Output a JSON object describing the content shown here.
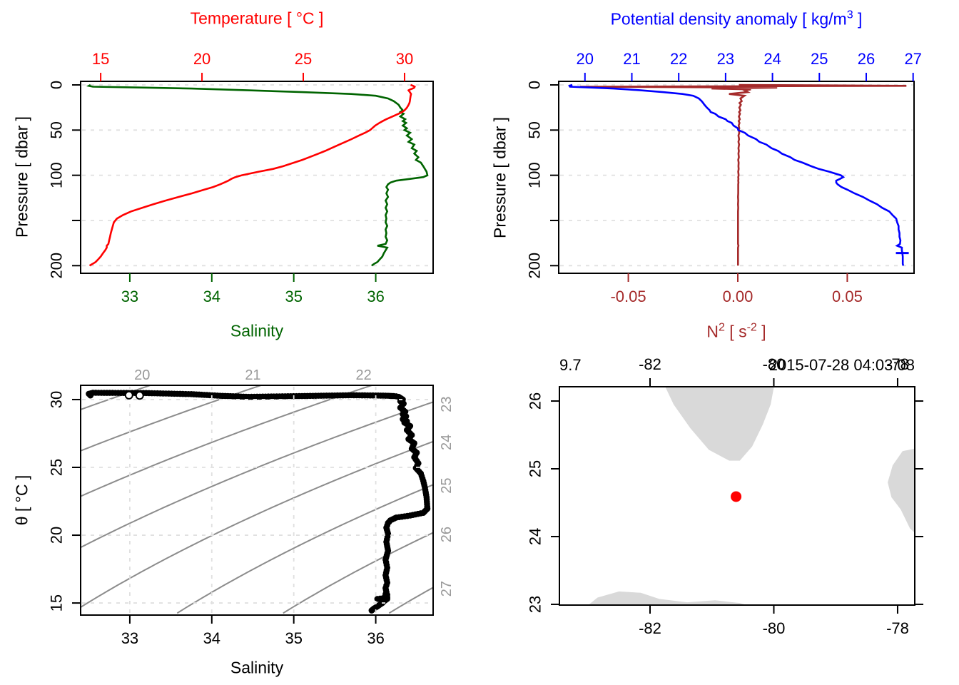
{
  "labels": {
    "temperature_axis": "Temperature [ °C ]",
    "salinity_axis": "Salinity",
    "pressure_axis": "Pressure [ dbar ]",
    "density_axis_pre": "Potential density anomaly [ kg/m",
    "density_axis_sup": "3",
    "density_axis_post": " ]",
    "n2_pre": "N",
    "n2_sup": "2",
    "n2_mid": " [ s",
    "n2_sup2": "-2",
    "n2_post": " ]",
    "theta_axis": "θ [ °C ]",
    "ts_xlabel": "Salinity",
    "map_distance": "9.7",
    "map_datetime": "2015-07-28 04:03:08"
  },
  "colors": {
    "temperature": "#FF0000",
    "salinity": "#006400",
    "density": "#0000FF",
    "n2": "#A52A2A",
    "box": "#000000",
    "grid": "#E0E0E0",
    "contour": "#8C8C8C",
    "contour_label": "#999999",
    "land": "#D9D9D9",
    "station": "#FF0000",
    "ts_points": "#000000"
  },
  "chart_data": {
    "type": [
      "line",
      "line",
      "scatter",
      "map"
    ],
    "profile": {
      "pressure": [
        0,
        1,
        2,
        3,
        4,
        5,
        6,
        8,
        10,
        12,
        15,
        18,
        20,
        22,
        25,
        28,
        30,
        32,
        35,
        38,
        40,
        42,
        45,
        48,
        50,
        53,
        56,
        60,
        63,
        66,
        70,
        73,
        76,
        80,
        83,
        86,
        90,
        93,
        96,
        100,
        102,
        104,
        106,
        108,
        110,
        113,
        116,
        120,
        124,
        128,
        132,
        136,
        140,
        144,
        148,
        152,
        156,
        160,
        164,
        168,
        172,
        176,
        178,
        180,
        183,
        186,
        190,
        193,
        196,
        198,
        200
      ],
      "temperature": [
        30.3,
        30.42,
        30.5,
        30.48,
        30.4,
        30.28,
        30.2,
        30.26,
        30.32,
        30.3,
        30.28,
        30.26,
        30.24,
        30.2,
        30.12,
        30.0,
        29.88,
        29.7,
        29.4,
        29.1,
        28.92,
        28.76,
        28.55,
        28.4,
        28.3,
        28.05,
        27.75,
        27.38,
        27.08,
        26.78,
        26.38,
        26.08,
        25.75,
        25.3,
        24.95,
        24.55,
        24.0,
        23.5,
        22.8,
        21.95,
        21.65,
        21.45,
        21.3,
        21.1,
        20.9,
        20.55,
        20.1,
        19.5,
        18.85,
        18.2,
        17.6,
        17.05,
        16.5,
        16.1,
        15.8,
        15.65,
        15.6,
        15.55,
        15.5,
        15.46,
        15.42,
        15.38,
        15.3,
        15.3,
        15.22,
        15.12,
        15.0,
        14.88,
        14.75,
        14.6,
        14.45
      ],
      "salinity": [
        32.52,
        32.5,
        32.55,
        33.2,
        33.75,
        34.1,
        34.45,
        35.1,
        35.7,
        36.0,
        36.15,
        36.22,
        36.25,
        36.28,
        36.3,
        36.33,
        36.3,
        36.34,
        36.3,
        36.36,
        36.33,
        36.37,
        36.33,
        36.38,
        36.35,
        36.42,
        36.38,
        36.44,
        36.4,
        36.47,
        36.44,
        36.5,
        36.47,
        36.52,
        36.49,
        36.55,
        36.58,
        36.6,
        36.62,
        36.63,
        36.58,
        36.42,
        36.25,
        36.18,
        36.15,
        36.13,
        36.15,
        36.13,
        36.15,
        36.12,
        36.14,
        36.12,
        36.14,
        36.12,
        36.13,
        36.12,
        36.14,
        36.12,
        36.13,
        36.12,
        36.14,
        36.12,
        36.02,
        36.14,
        36.12,
        36.1,
        36.08,
        36.05,
        36.02,
        35.98,
        35.95
      ],
      "sigma_theta": [
        19.73,
        19.67,
        19.68,
        20.17,
        20.61,
        20.91,
        21.19,
        21.66,
        22.08,
        22.31,
        22.43,
        22.49,
        22.52,
        22.55,
        22.6,
        22.66,
        22.68,
        22.78,
        22.85,
        23.0,
        23.04,
        23.13,
        23.17,
        23.26,
        23.27,
        23.41,
        23.48,
        23.65,
        23.72,
        23.87,
        23.98,
        24.12,
        24.2,
        24.38,
        24.47,
        24.64,
        24.83,
        24.99,
        25.21,
        25.46,
        25.51,
        25.44,
        25.36,
        25.36,
        25.39,
        25.47,
        25.6,
        25.75,
        25.93,
        26.07,
        26.23,
        26.34,
        26.49,
        26.56,
        26.64,
        26.66,
        26.69,
        26.69,
        26.71,
        26.71,
        26.73,
        26.72,
        26.66,
        26.76,
        26.76,
        26.77,
        26.78,
        26.78,
        26.78,
        26.78,
        26.79
      ],
      "N2": [
        0.0005,
        0.077,
        -0.072,
        0.018,
        -0.012,
        0.006,
        0.003,
        0.0045,
        -0.004,
        0.003,
        0.0012,
        0.0018,
        0.0008,
        0.0014,
        0.0007,
        0.0012,
        0.0006,
        0.001,
        0.0005,
        0.0009,
        0.0004,
        0.0008,
        0.0004,
        0.0007,
        0.0004,
        0.0007,
        0.0003,
        0.0006,
        0.0003,
        0.0006,
        0.0003,
        0.0005,
        0.0003,
        0.0005,
        0.0002,
        0.0004,
        0.0003,
        0.0004,
        0.0002,
        0.0004,
        0.0002,
        0.0003,
        0.0002,
        0.0003,
        0.0002,
        0.0002,
        0.0002,
        0.0002,
        0.0001,
        0.0002,
        0.0001,
        0.0002,
        0.0001,
        0.0001,
        0.0001,
        0.0001,
        0.0001,
        0.0001,
        0.0001,
        0.0001,
        0.0001,
        0.0001,
        0.0003,
        0.0001,
        0.0001,
        0.0001,
        0.0001,
        0.0001,
        0.0001,
        0.0001,
        0.0001
      ]
    },
    "hydro_panel": {
      "x_top": {
        "ticks": [
          15,
          20,
          25,
          30
        ],
        "labels": [
          "15",
          "20",
          "25",
          "30"
        ],
        "min": 14.01,
        "max": 31.41
      },
      "x_bottom": {
        "ticks": [
          33,
          34,
          35,
          36
        ],
        "labels": [
          "33",
          "34",
          "35",
          "36"
        ],
        "min": 32.4,
        "max": 36.7
      },
      "y": {
        "ticks": [
          0,
          50,
          100,
          150,
          200
        ],
        "labels": [
          "0",
          "50",
          "100",
          "",
          "200"
        ],
        "min": -3.95,
        "max": 208.45
      }
    },
    "density_panel": {
      "x_top": {
        "ticks": [
          20,
          21,
          22,
          23,
          24,
          25,
          26,
          27
        ],
        "labels": [
          "20",
          "21",
          "22",
          "23",
          "24",
          "25",
          "26",
          "27"
        ],
        "min": 19.44,
        "max": 27.02
      },
      "x_bottom": {
        "ticks": [
          -0.05,
          0,
          0.05
        ],
        "labels": [
          "-0.05",
          "0.00",
          "0.05"
        ],
        "min": -0.0818,
        "max": 0.0805
      },
      "y": {
        "ticks": [
          0,
          50,
          100,
          150,
          200
        ],
        "labels": [
          "0",
          "50",
          "100",
          "",
          "200"
        ],
        "min": -3.95,
        "max": 208.45
      },
      "plus_marker_pressure": 186
    },
    "ts_panel": {
      "x": {
        "ticks": [
          33,
          34,
          35,
          36
        ],
        "labels": [
          "33",
          "34",
          "35",
          "36"
        ],
        "min": 32.4,
        "max": 36.7
      },
      "y": {
        "ticks": [
          15,
          20,
          25,
          30
        ],
        "labels": [
          "15",
          "20",
          "25",
          "30"
        ],
        "min": 31.05,
        "max": 14.11
      },
      "isopycnal_levels": [
        20,
        21,
        22,
        23,
        24,
        25,
        26,
        27
      ],
      "isopycnal_labels": [
        "20",
        "21",
        "22",
        "23",
        "24",
        "25",
        "26",
        "27"
      ],
      "flagged_points": [
        [
          32.99,
          30.32
        ],
        [
          33.12,
          30.3
        ]
      ]
    },
    "map_panel": {
      "x": {
        "ticks": [
          -82,
          -80,
          -78
        ],
        "labels": [
          "-82",
          "-80",
          "-78"
        ],
        "min": -83.464,
        "max": -77.723
      },
      "y": {
        "ticks": [
          23,
          24,
          25,
          26
        ],
        "labels": [
          "23",
          "24",
          "25",
          "26"
        ],
        "min": 26.211,
        "max": 22.989
      },
      "station": {
        "lon": -80.61,
        "lat": 24.59
      },
      "land": [
        [
          [
            -81.8,
            26.3
          ],
          [
            -81.62,
            25.95
          ],
          [
            -81.35,
            25.6
          ],
          [
            -81.05,
            25.28
          ],
          [
            -80.72,
            25.12
          ],
          [
            -80.55,
            25.12
          ],
          [
            -80.35,
            25.33
          ],
          [
            -80.18,
            25.65
          ],
          [
            -80.05,
            25.95
          ],
          [
            -79.98,
            26.3
          ]
        ],
        [
          [
            -77.6,
            25.32
          ],
          [
            -77.92,
            25.26
          ],
          [
            -78.08,
            25.05
          ],
          [
            -78.16,
            24.8
          ],
          [
            -78.1,
            24.58
          ],
          [
            -77.95,
            24.4
          ],
          [
            -77.8,
            24.12
          ],
          [
            -77.6,
            23.95
          ]
        ],
        [
          [
            -83.05,
            22.95
          ],
          [
            -82.85,
            23.1
          ],
          [
            -82.5,
            23.19
          ],
          [
            -82.15,
            23.17
          ],
          [
            -81.85,
            23.08
          ],
          [
            -81.4,
            23.03
          ],
          [
            -80.95,
            23.06
          ],
          [
            -80.55,
            23.02
          ],
          [
            -80.3,
            22.95
          ]
        ]
      ]
    }
  }
}
